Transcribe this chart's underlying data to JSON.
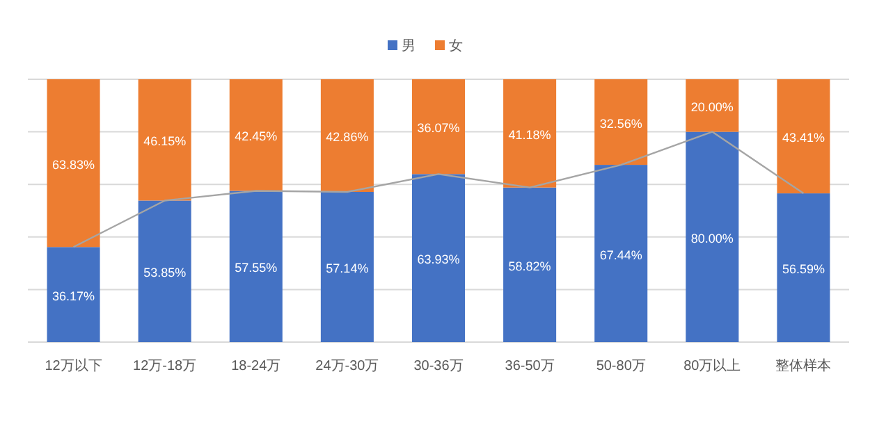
{
  "chart_data": {
    "type": "bar",
    "stacked": true,
    "categories": [
      "12万以下",
      "12万-18万",
      "18-24万",
      "24万-30万",
      "30-36万",
      "36-50万",
      "50-80万",
      "80万以上",
      "整体样本"
    ],
    "series": [
      {
        "name": "男",
        "color": "#4472c4",
        "values": [
          36.17,
          53.85,
          57.55,
          57.14,
          63.93,
          58.82,
          67.44,
          80.0,
          56.59
        ],
        "value_labels": [
          "36.17%",
          "53.85%",
          "57.55%",
          "57.14%",
          "63.93%",
          "58.82%",
          "67.44%",
          "80.00%",
          "56.59%"
        ]
      },
      {
        "name": "女",
        "color": "#ed7d31",
        "values": [
          63.83,
          46.15,
          42.45,
          42.86,
          36.07,
          41.18,
          32.56,
          20.0,
          43.41
        ],
        "value_labels": [
          "63.83%",
          "46.15%",
          "42.45%",
          "42.86%",
          "36.07%",
          "41.18%",
          "32.56%",
          "20.00%",
          "43.41%"
        ]
      },
      {
        "type": "line",
        "color": "#a5a5a5",
        "values": [
          36.17,
          53.85,
          57.55,
          57.14,
          63.93,
          58.82,
          67.44,
          80.0,
          56.59
        ],
        "marker": "none"
      }
    ],
    "ylim": [
      0,
      100
    ],
    "yticks": [
      {
        "value": 0,
        "label": null
      },
      {
        "value": 20,
        "label": null
      },
      {
        "value": 40,
        "label": null
      },
      {
        "value": 60,
        "label": null
      },
      {
        "value": 80,
        "label": null
      },
      {
        "value": 100,
        "label": null
      }
    ],
    "tick_labels": "x",
    "grid": "y",
    "legend": "top"
  }
}
